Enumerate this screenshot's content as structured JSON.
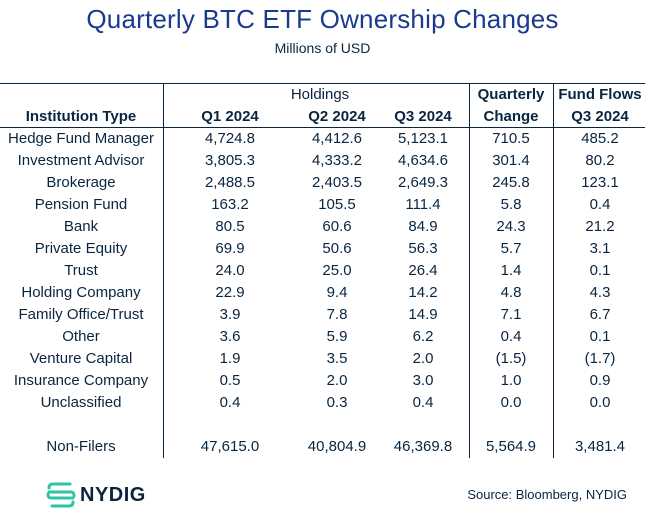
{
  "title": "Quarterly BTC ETF Ownership Changes",
  "subtitle": "Millions of USD",
  "group_header": "Holdings",
  "headers": {
    "institution": "Institution Type",
    "q1": "Q1 2024",
    "q2": "Q2 2024",
    "q3": "Q3 2024",
    "qc_top": "Quarterly",
    "qc_bottom": "Change",
    "ff_top": "Fund Flows",
    "ff_bottom": "Q3 2024"
  },
  "rows": [
    {
      "type": "Hedge Fund Manager",
      "q1": "4,724.8",
      "q2": "4,412.6",
      "q3": "5,123.1",
      "change": "710.5",
      "flows": "485.2"
    },
    {
      "type": "Investment Advisor",
      "q1": "3,805.3",
      "q2": "4,333.2",
      "q3": "4,634.6",
      "change": "301.4",
      "flows": "80.2"
    },
    {
      "type": "Brokerage",
      "q1": "2,488.5",
      "q2": "2,403.5",
      "q3": "2,649.3",
      "change": "245.8",
      "flows": "123.1"
    },
    {
      "type": "Pension Fund",
      "q1": "163.2",
      "q2": "105.5",
      "q3": "111.4",
      "change": "5.8",
      "flows": "0.4"
    },
    {
      "type": "Bank",
      "q1": "80.5",
      "q2": "60.6",
      "q3": "84.9",
      "change": "24.3",
      "flows": "21.2"
    },
    {
      "type": "Private Equity",
      "q1": "69.9",
      "q2": "50.6",
      "q3": "56.3",
      "change": "5.7",
      "flows": "3.1"
    },
    {
      "type": "Trust",
      "q1": "24.0",
      "q2": "25.0",
      "q3": "26.4",
      "change": "1.4",
      "flows": "0.1"
    },
    {
      "type": "Holding Company",
      "q1": "22.9",
      "q2": "9.4",
      "q3": "14.2",
      "change": "4.8",
      "flows": "4.3"
    },
    {
      "type": "Family Office/Trust",
      "q1": "3.9",
      "q2": "7.8",
      "q3": "14.9",
      "change": "7.1",
      "flows": "6.7"
    },
    {
      "type": "Other",
      "q1": "3.6",
      "q2": "5.9",
      "q3": "6.2",
      "change": "0.4",
      "flows": "0.1"
    },
    {
      "type": "Venture Capital",
      "q1": "1.9",
      "q2": "3.5",
      "q3": "2.0",
      "change": "(1.5)",
      "flows": "(1.7)"
    },
    {
      "type": "Insurance Company",
      "q1": "0.5",
      "q2": "2.0",
      "q3": "3.0",
      "change": "1.0",
      "flows": "0.9"
    },
    {
      "type": "Unclassified",
      "q1": "0.4",
      "q2": "0.3",
      "q3": "0.4",
      "change": "0.0",
      "flows": "0.0"
    }
  ],
  "non_filers": {
    "type": "Non-Filers",
    "q1": "47,615.0",
    "q2": "40,804.9",
    "q3": "46,369.8",
    "change": "5,564.9",
    "flows": "3,481.4"
  },
  "logo_text": "NYDIG",
  "source": "Source: Bloomberg, NYDIG",
  "colors": {
    "title": "#1a3a8f",
    "text": "#0a2540",
    "logo_icon": "#2ec4a6"
  }
}
